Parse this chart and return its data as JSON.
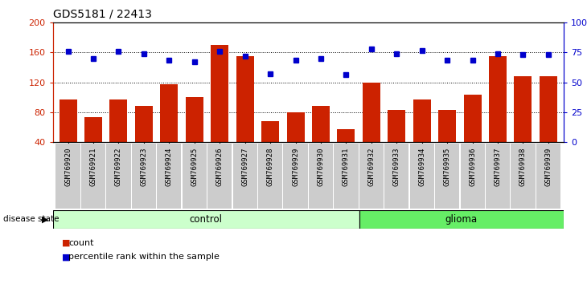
{
  "title": "GDS5181 / 22413",
  "categories": [
    "GSM769920",
    "GSM769921",
    "GSM769922",
    "GSM769923",
    "GSM769924",
    "GSM769925",
    "GSM769926",
    "GSM769927",
    "GSM769928",
    "GSM769929",
    "GSM769930",
    "GSM769931",
    "GSM769932",
    "GSM769933",
    "GSM769934",
    "GSM769935",
    "GSM769936",
    "GSM769937",
    "GSM769938",
    "GSM769939"
  ],
  "bar_values": [
    97,
    73,
    97,
    88,
    118,
    100,
    170,
    155,
    68,
    80,
    88,
    57,
    120,
    83,
    97,
    83,
    103,
    155,
    128,
    128
  ],
  "dot_values": [
    162,
    152,
    162,
    158,
    150,
    148,
    162,
    155,
    132,
    150,
    152,
    130,
    165,
    158,
    163,
    150,
    150,
    158,
    157,
    157
  ],
  "bar_color": "#cc2200",
  "dot_color": "#0000cc",
  "ylim_left": [
    40,
    200
  ],
  "ylim_right": [
    0,
    100
  ],
  "yticks_left": [
    40,
    80,
    120,
    160,
    200
  ],
  "yticks_right": [
    0,
    25,
    50,
    75,
    100
  ],
  "ytick_labels_right": [
    "0",
    "25",
    "50",
    "75",
    "100%"
  ],
  "grid_values": [
    80,
    120,
    160
  ],
  "control_count": 12,
  "control_label": "control",
  "glioma_label": "glioma",
  "disease_state_label": "disease state",
  "legend_bar_label": "count",
  "legend_dot_label": "percentile rank within the sample",
  "control_bg": "#ccffcc",
  "glioma_bg": "#66ee66",
  "xtick_bg": "#cccccc",
  "title_color": "#000000",
  "left_axis_color": "#cc2200",
  "right_axis_color": "#0000cc"
}
